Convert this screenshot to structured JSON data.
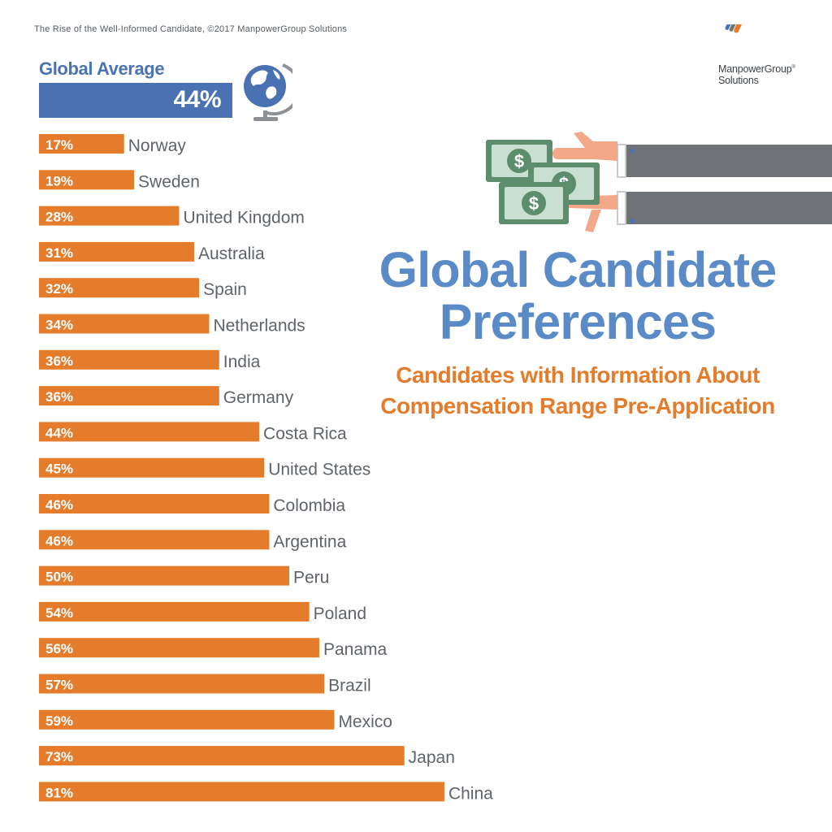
{
  "source_note": "The Rise of the Well-Informed Candidate, ©2017 ManpowerGroup Solutions",
  "logo": {
    "line1": "ManpowerGroup",
    "line2": "Solutions",
    "reg_mark": "®",
    "stripe_colors": [
      "#4a72b2",
      "#6f7378",
      "#e57c2c"
    ]
  },
  "global_average": {
    "label": "Global Average",
    "value_label": "44%",
    "value": 44
  },
  "title": "Global Candidate Preferences",
  "subtitle": "Candidates with Information About Compensation Range Pre-Application",
  "colors": {
    "bar": "#e57c2c",
    "average_bar": "#4a72b2",
    "title": "#5b8bc7",
    "subtitle": "#e57c2c",
    "label": "#5f6469"
  },
  "chart_data": {
    "type": "bar",
    "orientation": "horizontal",
    "unit": "%",
    "categories": [
      "Norway",
      "Sweden",
      "United Kingdom",
      "Australia",
      "Spain",
      "Netherlands",
      "India",
      "Germany",
      "Costa Rica",
      "United States",
      "Colombia",
      "Argentina",
      "Peru",
      "Poland",
      "Panama",
      "Brazil",
      "Mexico",
      "Japan",
      "China"
    ],
    "values": [
      17,
      19,
      28,
      31,
      32,
      34,
      36,
      36,
      44,
      45,
      46,
      46,
      50,
      54,
      56,
      57,
      59,
      73,
      81
    ],
    "value_labels": [
      "17%",
      "19%",
      "28%",
      "31%",
      "32%",
      "34%",
      "36%",
      "36%",
      "44%",
      "45%",
      "46%",
      "46%",
      "50%",
      "54%",
      "56%",
      "57%",
      "59%",
      "73%",
      "81%"
    ],
    "xlim": [
      0,
      100
    ],
    "grid": false,
    "legend": "none"
  }
}
